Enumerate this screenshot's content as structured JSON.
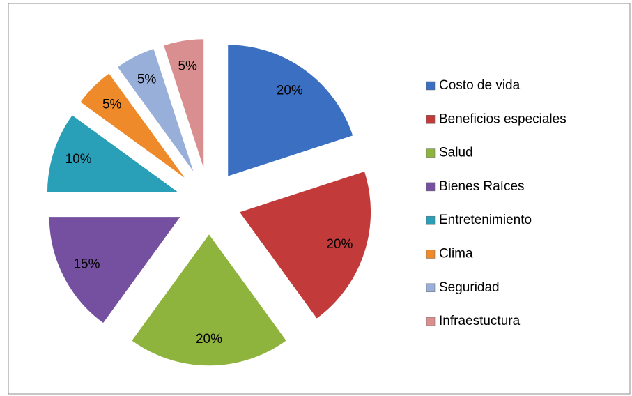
{
  "chart_data": {
    "type": "pie",
    "categories": [
      "Costo de vida",
      "Beneficios especiales",
      "Salud",
      "Bienes Raíces",
      "Entretenimiento",
      "Clima",
      "Seguridad",
      "Infraestuctura"
    ],
    "values": [
      20,
      20,
      20,
      15,
      10,
      5,
      5,
      5
    ],
    "value_labels": [
      "20%",
      "20%",
      "20%",
      "15%",
      "10%",
      "5%",
      "5%",
      "5%"
    ],
    "colors": [
      "#3a6fc1",
      "#c23a3a",
      "#8fb43e",
      "#7650a0",
      "#2a9fb8",
      "#ee8a2a",
      "#98afd9",
      "#d98f8f"
    ],
    "legend": "right"
  }
}
